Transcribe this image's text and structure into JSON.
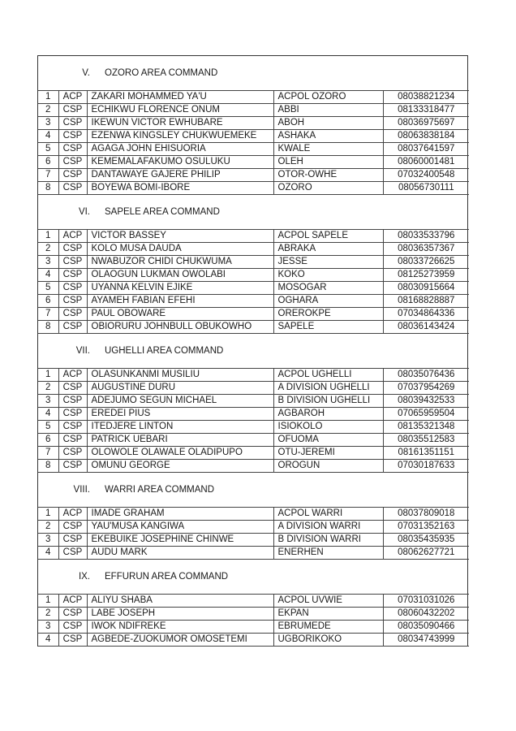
{
  "sections": [
    {
      "numeral": "V.",
      "title": "OZORO AREA COMMAND",
      "rows": [
        [
          "1",
          "ACP",
          "ZAKARI MOHAMMED YA'U",
          "ACPOL OZORO",
          "08038821234"
        ],
        [
          "2",
          "CSP",
          "ECHIKWU FLORENCE ONUM",
          "ABBI",
          "08133318477"
        ],
        [
          "3",
          "CSP",
          "IKEWUN VICTOR EWHUBARE",
          "ABOH",
          "08036975697"
        ],
        [
          "4",
          "CSP",
          "EZENWA KINGSLEY CHUKWUEMEKE",
          "ASHAKA",
          "08063838184"
        ],
        [
          "5",
          "CSP",
          "AGAGA JOHN EHISUORIA",
          "KWALE",
          "08037641597"
        ],
        [
          "6",
          "CSP",
          "KEMEMALAFAKUMO OSULUKU",
          "OLEH",
          "08060001481"
        ],
        [
          "7",
          "CSP",
          "DANTAWAYE GAJERE PHILIP",
          "OTOR-OWHE",
          "07032400548"
        ],
        [
          "8",
          "CSP",
          "BOYEWA BOMI-IBORE",
          "OZORO",
          "08056730111"
        ]
      ]
    },
    {
      "numeral": "VI.",
      "title": "SAPELE AREA COMMAND",
      "rows": [
        [
          "1",
          "ACP",
          "VICTOR BASSEY",
          "ACPOL SAPELE",
          "08033533796"
        ],
        [
          "2",
          "CSP",
          "KOLO MUSA DAUDA",
          "ABRAKA",
          "08036357367"
        ],
        [
          "3",
          "CSP",
          "NWABUZOR CHIDI CHUKWUMA",
          "JESSE",
          "08033726625"
        ],
        [
          "4",
          "CSP",
          "OLAOGUN LUKMAN OWOLABI",
          "KOKO",
          "08125273959"
        ],
        [
          "5",
          "CSP",
          "UYANNA KELVIN EJIKE",
          "MOSOGAR",
          "08030915664"
        ],
        [
          "6",
          "CSP",
          "AYAMEH FABIAN EFEHI",
          "OGHARA",
          "08168828887"
        ],
        [
          "7",
          "CSP",
          "PAUL OBOWARE",
          "OREROKPE",
          "07034864336"
        ],
        [
          "8",
          "CSP",
          "OBIORURU JOHNBULL OBUKOWHO",
          "SAPELE",
          "08036143424"
        ]
      ]
    },
    {
      "numeral": "VII.",
      "title": "UGHELLI AREA COMMAND",
      "rows": [
        [
          "1",
          "ACP",
          "OLASUNKANMI MUSILIU",
          "ACPOL UGHELLI",
          "08035076436"
        ],
        [
          "2",
          "CSP",
          "AUGUSTINE DURU",
          "A DIVISION UGHELLI",
          "07037954269"
        ],
        [
          "3",
          "CSP",
          "ADEJUMO SEGUN MICHAEL",
          "B DIVISION UGHELLI",
          "08039432533"
        ],
        [
          "4",
          "CSP",
          "EREDEI PIUS",
          "AGBAROH",
          "07065959504"
        ],
        [
          "5",
          "CSP",
          "ITEDJERE LINTON",
          "ISIOKOLO",
          "08135321348"
        ],
        [
          "6",
          "CSP",
          "PATRICK UEBARI",
          "OFUOMA",
          "08035512583"
        ],
        [
          "7",
          "CSP",
          "OLOWOLE OLAWALE OLADIPUPO",
          "OTU-JEREMI",
          "08161351151"
        ],
        [
          "8",
          "CSP",
          "OMUNU GEORGE",
          "OROGUN",
          "07030187633"
        ]
      ]
    },
    {
      "numeral": "VIII.",
      "title": "WARRI AREA COMMAND",
      "rows": [
        [
          "1",
          "ACP",
          "IMADE GRAHAM",
          "ACPOL WARRI",
          "08037809018"
        ],
        [
          "2",
          "CSP",
          "YAU'MUSA KANGIWA",
          "A DIVISION WARRI",
          "07031352163"
        ],
        [
          "3",
          "CSP",
          "EKEBUIKE JOSEPHINE CHINWE",
          "B DIVISION WARRI",
          "08035435935"
        ],
        [
          "4",
          "CSP",
          "AUDU MARK",
          "ENERHEN",
          "08062627721"
        ]
      ]
    },
    {
      "numeral": "IX.",
      "title": "EFFURUN AREA COMMAND",
      "rows": [
        [
          "1",
          "ACP",
          "ALIYU SHABA",
          "ACPOL UVWIE",
          "07031031026"
        ],
        [
          "2",
          "CSP",
          "LABE JOSEPH",
          "EKPAN",
          "08060432202"
        ],
        [
          "3",
          "CSP",
          "IWOK NDIFREKE",
          "EBRUMEDE",
          "08035090466"
        ],
        [
          "4",
          "CSP",
          "AGBEDE-ZUOKUMOR OMOSETEMI",
          "UGBORIKOKO",
          "08034743999"
        ]
      ]
    }
  ]
}
